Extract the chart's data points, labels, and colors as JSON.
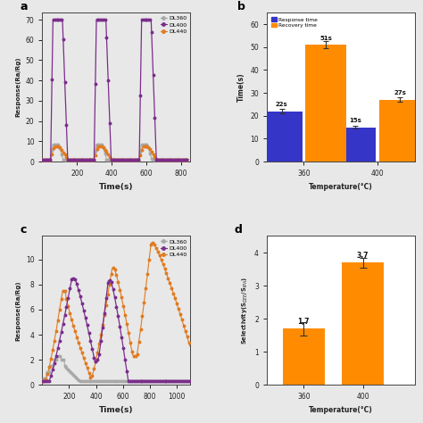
{
  "top_left": {
    "xlabel": "Time(s)",
    "ylabel": "Response(Ra/Rg)",
    "xlim": [
      0,
      850
    ],
    "xticks": [
      200,
      400,
      600,
      800
    ],
    "legend_labels": [
      "DL360",
      "DL400",
      "DL440"
    ],
    "colors": [
      "#a8a8a8",
      "#7b2d8b",
      "#e07b20"
    ]
  },
  "bottom_left": {
    "xlabel": "Time(s)",
    "ylabel": "Response(Ra/Rg)",
    "xlim": [
      0,
      1100
    ],
    "xticks": [
      200,
      400,
      600,
      800,
      1000
    ],
    "legend_labels": [
      "DL360",
      "DL400",
      "DL440"
    ],
    "colors": [
      "#a8a8a8",
      "#7b2d8b",
      "#e07b20"
    ]
  },
  "top_right": {
    "xlabel": "Temperature(°C)",
    "ylabel": "Time(s)",
    "ylim": [
      0,
      65
    ],
    "yticks": [
      0,
      10,
      20,
      30,
      40,
      50,
      60
    ],
    "categories": [
      "360",
      "400"
    ],
    "response_times": [
      22,
      15
    ],
    "recovery_times": [
      51,
      27
    ],
    "response_color": "#3535c8",
    "recovery_color": "#ff8c00",
    "response_label": "Response time",
    "recovery_label": "Recovery time",
    "bar_width": 0.28,
    "error_response": [
      1.0,
      0.5
    ],
    "error_recovery": [
      1.5,
      1.0
    ],
    "labels_response": [
      "22s",
      "15s"
    ],
    "labels_recovery": [
      "51s",
      "27s"
    ]
  },
  "bottom_right": {
    "xlabel": "Temperature(°C)",
    "ylabel": "Selectivity(S$_{DEE}$/S$_{IPA}$)",
    "ylim": [
      0,
      4.5
    ],
    "yticks": [
      0,
      1,
      2,
      3,
      4
    ],
    "categories": [
      "360",
      "400"
    ],
    "values": [
      1.7,
      3.7
    ],
    "bar_color": "#ff8c00",
    "error": [
      0.2,
      0.15
    ],
    "labels": [
      "1,7",
      "3,7"
    ]
  },
  "bg_color": "#e8e8e8"
}
